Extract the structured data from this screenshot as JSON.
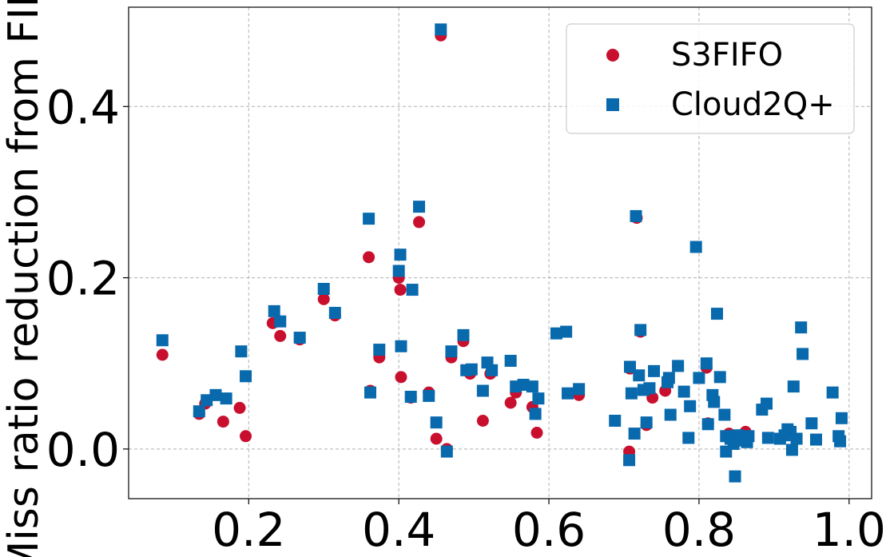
{
  "chart_data": {
    "type": "scatter",
    "xlabel": "",
    "ylabel": "Miss ratio reduction from FIFO",
    "xlim": [
      0.04,
      1.03
    ],
    "ylim": [
      -0.058,
      0.516
    ],
    "xticks": [
      0.2,
      0.4,
      0.6,
      0.8,
      1.0
    ],
    "xtick_labels": [
      "0.2",
      "0.4",
      "0.6",
      "0.8",
      "1.0"
    ],
    "yticks": [
      0.0,
      0.2,
      0.4
    ],
    "ytick_labels": [
      "0.0",
      "0.2",
      "0.4"
    ],
    "grid": true,
    "legend_position": "top-right",
    "series": [
      {
        "name": "S3FIFO",
        "marker": "circle",
        "color": "#c8102e",
        "points": [
          [
            0.085,
            0.11
          ],
          [
            0.134,
            0.041
          ],
          [
            0.142,
            0.053
          ],
          [
            0.166,
            0.032
          ],
          [
            0.188,
            0.048
          ],
          [
            0.196,
            0.015
          ],
          [
            0.232,
            0.147
          ],
          [
            0.242,
            0.132
          ],
          [
            0.268,
            0.128
          ],
          [
            0.3,
            0.175
          ],
          [
            0.315,
            0.156
          ],
          [
            0.36,
            0.224
          ],
          [
            0.362,
            0.068
          ],
          [
            0.374,
            0.107
          ],
          [
            0.4,
            0.2
          ],
          [
            0.402,
            0.186
          ],
          [
            0.403,
            0.084
          ],
          [
            0.416,
            0.06
          ],
          [
            0.427,
            0.265
          ],
          [
            0.44,
            0.066
          ],
          [
            0.45,
            0.012
          ],
          [
            0.456,
            0.483
          ],
          [
            0.464,
            0.0
          ],
          [
            0.47,
            0.107
          ],
          [
            0.486,
            0.126
          ],
          [
            0.495,
            0.088
          ],
          [
            0.512,
            0.033
          ],
          [
            0.522,
            0.088
          ],
          [
            0.549,
            0.054
          ],
          [
            0.556,
            0.066
          ],
          [
            0.578,
            0.049
          ],
          [
            0.584,
            0.019
          ],
          [
            0.64,
            0.063
          ],
          [
            0.707,
            -0.003
          ],
          [
            0.708,
            0.094
          ],
          [
            0.717,
            0.27
          ],
          [
            0.722,
            0.137
          ],
          [
            0.73,
            0.028
          ],
          [
            0.738,
            0.06
          ],
          [
            0.755,
            0.068
          ],
          [
            0.772,
            0.097
          ],
          [
            0.81,
            0.095
          ],
          [
            0.812,
            0.03
          ],
          [
            0.84,
            0.018
          ],
          [
            0.862,
            0.02
          ]
        ]
      },
      {
        "name": "Cloud2Q+",
        "marker": "square",
        "color": "#0869ad",
        "points": [
          [
            0.085,
            0.127
          ],
          [
            0.134,
            0.044
          ],
          [
            0.144,
            0.057
          ],
          [
            0.156,
            0.063
          ],
          [
            0.17,
            0.059
          ],
          [
            0.19,
            0.114
          ],
          [
            0.196,
            0.085
          ],
          [
            0.234,
            0.161
          ],
          [
            0.242,
            0.149
          ],
          [
            0.268,
            0.13
          ],
          [
            0.3,
            0.187
          ],
          [
            0.315,
            0.159
          ],
          [
            0.36,
            0.269
          ],
          [
            0.362,
            0.066
          ],
          [
            0.374,
            0.116
          ],
          [
            0.4,
            0.208
          ],
          [
            0.402,
            0.227
          ],
          [
            0.403,
            0.12
          ],
          [
            0.416,
            0.061
          ],
          [
            0.418,
            0.186
          ],
          [
            0.427,
            0.283
          ],
          [
            0.44,
            0.062
          ],
          [
            0.45,
            0.031
          ],
          [
            0.456,
            0.49
          ],
          [
            0.464,
            -0.003
          ],
          [
            0.47,
            0.114
          ],
          [
            0.486,
            0.133
          ],
          [
            0.49,
            0.092
          ],
          [
            0.497,
            0.093
          ],
          [
            0.512,
            0.068
          ],
          [
            0.518,
            0.101
          ],
          [
            0.524,
            0.092
          ],
          [
            0.549,
            0.103
          ],
          [
            0.556,
            0.073
          ],
          [
            0.566,
            0.075
          ],
          [
            0.578,
            0.073
          ],
          [
            0.582,
            0.041
          ],
          [
            0.586,
            0.059
          ],
          [
            0.61,
            0.135
          ],
          [
            0.623,
            0.137
          ],
          [
            0.625,
            0.065
          ],
          [
            0.64,
            0.07
          ],
          [
            0.688,
            0.033
          ],
          [
            0.707,
            -0.013
          ],
          [
            0.708,
            0.096
          ],
          [
            0.71,
            0.065
          ],
          [
            0.714,
            0.018
          ],
          [
            0.716,
            0.272
          ],
          [
            0.72,
            0.086
          ],
          [
            0.722,
            0.139
          ],
          [
            0.726,
            0.069
          ],
          [
            0.73,
            0.031
          ],
          [
            0.734,
            0.071
          ],
          [
            0.74,
            0.091
          ],
          [
            0.758,
            0.078
          ],
          [
            0.76,
            0.083
          ],
          [
            0.762,
            0.04
          ],
          [
            0.772,
            0.097
          ],
          [
            0.78,
            0.067
          ],
          [
            0.786,
            0.013
          ],
          [
            0.788,
            0.05
          ],
          [
            0.796,
            0.236
          ],
          [
            0.8,
            0.083
          ],
          [
            0.81,
            0.1
          ],
          [
            0.812,
            0.029
          ],
          [
            0.818,
            0.063
          ],
          [
            0.82,
            0.055
          ],
          [
            0.824,
            0.158
          ],
          [
            0.828,
            0.084
          ],
          [
            0.834,
            0.04
          ],
          [
            0.836,
            0.015
          ],
          [
            0.836,
            -0.003
          ],
          [
            0.842,
            0.012
          ],
          [
            0.846,
            0.006
          ],
          [
            0.848,
            -0.032
          ],
          [
            0.852,
            0.016
          ],
          [
            0.856,
            0.01
          ],
          [
            0.86,
            0.014
          ],
          [
            0.864,
            0.008
          ],
          [
            0.866,
            0.015
          ],
          [
            0.884,
            0.046
          ],
          [
            0.89,
            0.053
          ],
          [
            0.892,
            0.013
          ],
          [
            0.908,
            0.012
          ],
          [
            0.914,
            0.016
          ],
          [
            0.918,
            0.023
          ],
          [
            0.922,
            0.02
          ],
          [
            0.924,
            -0.001
          ],
          [
            0.926,
            0.073
          ],
          [
            0.93,
            0.012
          ],
          [
            0.936,
            0.142
          ],
          [
            0.938,
            0.111
          ],
          [
            0.95,
            0.03
          ],
          [
            0.956,
            0.011
          ],
          [
            0.978,
            0.066
          ],
          [
            0.986,
            0.015
          ],
          [
            0.988,
            0.009
          ],
          [
            0.99,
            0.036
          ]
        ]
      }
    ]
  }
}
